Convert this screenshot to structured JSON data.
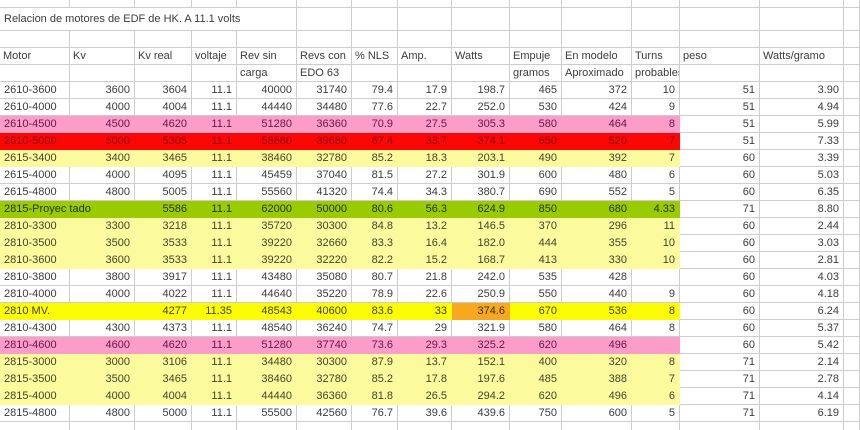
{
  "sheet": {
    "title": "Relacion de motores de EDF de HK. A 11.1 volts",
    "colors": {
      "gridline": "#cdcdcd",
      "default_text": "#3c3c3c",
      "none": {
        "bg": "#ffffff",
        "text": "#3c3c3c"
      },
      "yellow": {
        "bg": "#fbfb9e",
        "text": "#44442a"
      },
      "bright-yellow": {
        "bg": "#fcfc05",
        "text": "#454512"
      },
      "pink": {
        "bg": "#fc9cc9",
        "text": "#641747"
      },
      "red": {
        "bg": "#fc0606",
        "text": "#8f0000"
      },
      "green": {
        "bg": "#9aca00",
        "text": "#283603"
      },
      "orange": {
        "bg": "#f6a81f",
        "text": "#4a3000"
      }
    },
    "columns": [
      {
        "line1": "Motor",
        "line2": ""
      },
      {
        "line1": "Kv",
        "line2": ""
      },
      {
        "line1": "Kv real",
        "line2": ""
      },
      {
        "line1": "voltaje",
        "line2": ""
      },
      {
        "line1": "Rev sin",
        "line2": "carga"
      },
      {
        "line1": "Revs con",
        "line2": "EDO 63"
      },
      {
        "line1": "% NLS",
        "line2": ""
      },
      {
        "line1": "Amp.",
        "line2": ""
      },
      {
        "line1": "Watts",
        "line2": ""
      },
      {
        "line1": "Empuje",
        "line2": "gramos"
      },
      {
        "line1": "En modelo",
        "line2": "Aproximado"
      },
      {
        "line1": "Turns",
        "line2": "probables"
      },
      {
        "line1": "peso",
        "line2": ""
      },
      {
        "line1": "Watts/gramo",
        "line2": ""
      }
    ],
    "rows": [
      {
        "cells": [
          "2610-3600",
          "3600",
          "3604",
          "11.1",
          "40000",
          "31740",
          "79.4",
          "17.9",
          "198.7",
          "465",
          "372",
          "10",
          "51",
          "3.90"
        ],
        "highlight": "none"
      },
      {
        "cells": [
          "2610-4000",
          "4000",
          "4004",
          "11.1",
          "44440",
          "34480",
          "77.6",
          "22.7",
          "252.0",
          "530",
          "424",
          "9",
          "51",
          "4.94"
        ],
        "highlight": "none"
      },
      {
        "cells": [
          "2610-4500",
          "4500",
          "4620",
          "11.1",
          "51280",
          "36360",
          "70.9",
          "27.5",
          "305.3",
          "580",
          "464",
          "8",
          "51",
          "5.99"
        ],
        "highlight": "pink"
      },
      {
        "cells": [
          "2610-5000",
          "5000",
          "5305",
          "11.1",
          "58880",
          "39680",
          "67.4",
          "33.7",
          "374.1",
          "650",
          "520",
          "7",
          "51",
          "7.33"
        ],
        "highlight": "red"
      },
      {
        "cells": [
          "2615-3400",
          "3400",
          "3465",
          "11.1",
          "38460",
          "32780",
          "85.2",
          "18.3",
          "203.1",
          "490",
          "392",
          "7",
          "60",
          "3.39"
        ],
        "highlight": "yellow"
      },
      {
        "cells": [
          "2615-4000",
          "4000",
          "4095",
          "11.1",
          "45459",
          "37040",
          "81.5",
          "27.2",
          "301.9",
          "600",
          "480",
          "6",
          "60",
          "5.03"
        ],
        "highlight": "none"
      },
      {
        "cells": [
          "2615-4800",
          "4800",
          "5005",
          "11.1",
          "55560",
          "41320",
          "74.4",
          "34.3",
          "380.7",
          "690",
          "552",
          "5",
          "60",
          "6.35"
        ],
        "highlight": "none"
      },
      {
        "cells": [
          "2815-Proyec tado",
          "",
          "5586",
          "11.1",
          "62000",
          "50000",
          "80.6",
          "56.3",
          "624.9",
          "850",
          "680",
          "4.33",
          "71",
          "8.80"
        ],
        "highlight": "green",
        "merge_first_two": true
      },
      {
        "cells": [
          "2810-3300",
          "3300",
          "3218",
          "11.1",
          "35720",
          "30300",
          "84.8",
          "13.2",
          "146.5",
          "370",
          "296",
          "11",
          "60",
          "2.44"
        ],
        "highlight": "yellow"
      },
      {
        "cells": [
          "2810-3500",
          "3500",
          "3533",
          "11.1",
          "39220",
          "32660",
          "83.3",
          "16.4",
          "182.0",
          "444",
          "355",
          "10",
          "60",
          "3.03"
        ],
        "highlight": "yellow"
      },
      {
        "cells": [
          "2810-3600",
          "3600",
          "3533",
          "11.1",
          "39220",
          "32220",
          "82.2",
          "15.2",
          "168.7",
          "413",
          "330",
          "10",
          "60",
          "2.81"
        ],
        "highlight": "yellow"
      },
      {
        "cells": [
          "2810-3800",
          "3800",
          "3917",
          "11.1",
          "43480",
          "35080",
          "80.7",
          "21.8",
          "242.0",
          "535",
          "428",
          "",
          "60",
          "4.03"
        ],
        "highlight": "none"
      },
      {
        "cells": [
          "2810-4000",
          "4000",
          "4022",
          "11.1",
          "44640",
          "35220",
          "78.9",
          "22.6",
          "250.9",
          "550",
          "440",
          "9",
          "60",
          "4.18"
        ],
        "highlight": "none"
      },
      {
        "cells": [
          "2810 MV.",
          "",
          "4277",
          "11.35",
          "48543",
          "40600",
          "83.6",
          "33",
          "374.6",
          "670",
          "536",
          "8",
          "60",
          "6.24"
        ],
        "highlight": "bright-yellow",
        "cell_overrides": {
          "8": "orange"
        }
      },
      {
        "cells": [
          "2810-4300",
          "4300",
          "4373",
          "11.1",
          "48540",
          "36240",
          "74.7",
          "29",
          "321.9",
          "580",
          "464",
          "8",
          "60",
          "5.37"
        ],
        "highlight": "none"
      },
      {
        "cells": [
          "2810-4600",
          "4600",
          "4620",
          "11.1",
          "51280",
          "37740",
          "73.6",
          "29.3",
          "325.2",
          "620",
          "496",
          "",
          "60",
          "5.42"
        ],
        "highlight": "pink"
      },
      {
        "cells": [
          "2815-3000",
          "3000",
          "3106",
          "11.1",
          "34480",
          "30300",
          "87.9",
          "13.7",
          "152.1",
          "400",
          "320",
          "8",
          "71",
          "2.14"
        ],
        "highlight": "yellow"
      },
      {
        "cells": [
          "2815-3500",
          "3500",
          "3465",
          "11.1",
          "38460",
          "32780",
          "85.2",
          "17.8",
          "197.6",
          "485",
          "388",
          "7",
          "71",
          "2.78"
        ],
        "highlight": "yellow"
      },
      {
        "cells": [
          "2815-4000",
          "4000",
          "4004",
          "11.1",
          "44440",
          "36360",
          "81.8",
          "26.5",
          "294.2",
          "620",
          "496",
          "6",
          "71",
          "4.14"
        ],
        "highlight": "yellow"
      },
      {
        "cells": [
          "2815-4800",
          "4800",
          "5000",
          "11.1",
          "55500",
          "42560",
          "76.7",
          "39.6",
          "439.6",
          "750",
          "600",
          "5",
          "71",
          "6.19"
        ],
        "highlight": "none"
      }
    ]
  }
}
